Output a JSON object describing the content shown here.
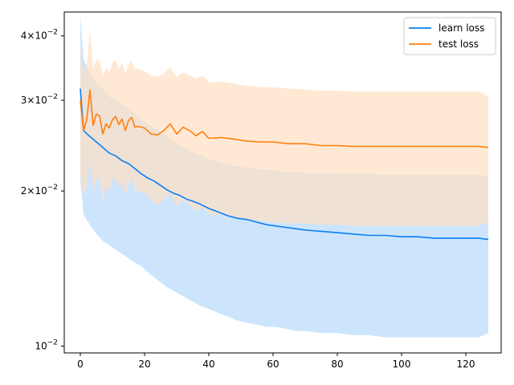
{
  "chart_data": {
    "type": "line",
    "title": "",
    "xlabel": "",
    "ylabel": "",
    "xlim": [
      -5,
      131
    ],
    "ylim": [
      0.0097,
      0.0445
    ],
    "yscale": "log",
    "grid": false,
    "legend": {
      "position": "upper right",
      "entries": [
        "learn loss",
        "test loss"
      ]
    },
    "x_ticks": [
      0,
      20,
      40,
      60,
      80,
      100,
      120
    ],
    "x_tick_labels": [
      "0",
      "20",
      "40",
      "60",
      "80",
      "100",
      "120"
    ],
    "y_ticks": [
      0.01,
      0.02,
      0.03,
      0.04
    ],
    "y_tick_labels": [
      {
        "mantissa": "",
        "base": "10",
        "exp": "−2"
      },
      {
        "mantissa": "2",
        "base": "10",
        "exp": "−2"
      },
      {
        "mantissa": "3",
        "base": "10",
        "exp": "−2"
      },
      {
        "mantissa": "4",
        "base": "10",
        "exp": "−2"
      }
    ],
    "series": [
      {
        "name": "learn loss",
        "color": "#0a7ff0",
        "band_color": "#cce5fd",
        "x": [
          0,
          1,
          3,
          5,
          7,
          9,
          11,
          13,
          15,
          17,
          19,
          21,
          23,
          25,
          27,
          29,
          31,
          33,
          35,
          37,
          40,
          43,
          46,
          49,
          52,
          55,
          58,
          61,
          64,
          67,
          70,
          75,
          80,
          85,
          90,
          95,
          100,
          105,
          110,
          115,
          120,
          124,
          127
        ],
        "y": [
          0.0316,
          0.0262,
          0.0255,
          0.0249,
          0.0243,
          0.0237,
          0.0234,
          0.0229,
          0.0226,
          0.0221,
          0.0216,
          0.0212,
          0.0209,
          0.0205,
          0.0201,
          0.0198,
          0.0196,
          0.0193,
          0.0191,
          0.0189,
          0.0185,
          0.0182,
          0.0179,
          0.0177,
          0.0176,
          0.0174,
          0.0172,
          0.0171,
          0.017,
          0.0169,
          0.0168,
          0.0167,
          0.0166,
          0.0165,
          0.0164,
          0.0164,
          0.0163,
          0.0163,
          0.0162,
          0.0162,
          0.0162,
          0.0162,
          0.0161
        ],
        "lower": [
          0.021,
          0.018,
          0.0172,
          0.0165,
          0.016,
          0.0157,
          0.0154,
          0.0151,
          0.0148,
          0.0145,
          0.0143,
          0.0139,
          0.0136,
          0.0133,
          0.013,
          0.0128,
          0.0126,
          0.0124,
          0.0122,
          0.012,
          0.0118,
          0.0116,
          0.0114,
          0.0112,
          0.0111,
          0.011,
          0.0109,
          0.0109,
          0.0108,
          0.0107,
          0.0107,
          0.0106,
          0.0106,
          0.0105,
          0.0105,
          0.0104,
          0.0104,
          0.0104,
          0.0104,
          0.0104,
          0.0104,
          0.0104,
          0.0106
        ],
        "upper": [
          0.044,
          0.036,
          0.034,
          0.0325,
          0.0315,
          0.0305,
          0.03,
          0.0295,
          0.029,
          0.0283,
          0.0275,
          0.027,
          0.0265,
          0.026,
          0.0255,
          0.025,
          0.0246,
          0.0242,
          0.0238,
          0.0235,
          0.0231,
          0.0228,
          0.0225,
          0.0223,
          0.0222,
          0.0221,
          0.022,
          0.0219,
          0.0218,
          0.0218,
          0.0217,
          0.0217,
          0.0216,
          0.0216,
          0.0216,
          0.0215,
          0.0215,
          0.0215,
          0.0215,
          0.0215,
          0.0215,
          0.0215,
          0.0213
        ]
      },
      {
        "name": "test loss",
        "color": "#ff7f0e",
        "band_color": "#ffdfc3",
        "x": [
          0,
          1,
          2,
          3,
          4,
          5,
          6,
          7,
          8,
          9,
          10,
          11,
          12,
          13,
          14,
          15,
          16,
          17,
          18,
          20,
          22,
          24,
          26,
          28,
          30,
          32,
          34,
          36,
          38,
          40,
          44,
          48,
          52,
          56,
          60,
          65,
          70,
          75,
          80,
          85,
          90,
          95,
          100,
          105,
          110,
          115,
          120,
          124,
          127
        ],
        "y": [
          0.03,
          0.0262,
          0.0275,
          0.0314,
          0.0268,
          0.0282,
          0.028,
          0.0258,
          0.027,
          0.0265,
          0.0275,
          0.0279,
          0.0269,
          0.0276,
          0.0262,
          0.0274,
          0.0278,
          0.0266,
          0.0267,
          0.0265,
          0.0258,
          0.0257,
          0.0262,
          0.027,
          0.0258,
          0.0266,
          0.0262,
          0.0256,
          0.0261,
          0.0253,
          0.0254,
          0.0252,
          0.025,
          0.0249,
          0.0249,
          0.0247,
          0.0247,
          0.0245,
          0.0245,
          0.0244,
          0.0244,
          0.0244,
          0.0244,
          0.0244,
          0.0244,
          0.0244,
          0.0244,
          0.0244,
          0.0243
        ],
        "lower": [
          0.0215,
          0.0195,
          0.0205,
          0.0232,
          0.0198,
          0.0212,
          0.021,
          0.019,
          0.0205,
          0.0198,
          0.021,
          0.0212,
          0.0202,
          0.0208,
          0.0195,
          0.0205,
          0.0212,
          0.02,
          0.02,
          0.0198,
          0.0192,
          0.0188,
          0.0192,
          0.0198,
          0.0187,
          0.0192,
          0.0188,
          0.0183,
          0.0186,
          0.018,
          0.018,
          0.0178,
          0.0176,
          0.0175,
          0.0174,
          0.0173,
          0.0173,
          0.0172,
          0.0172,
          0.0171,
          0.0171,
          0.0171,
          0.0171,
          0.0171,
          0.0171,
          0.0171,
          0.0171,
          0.0171,
          0.0174
        ],
        "upper": [
          0.038,
          0.034,
          0.035,
          0.041,
          0.0345,
          0.036,
          0.0358,
          0.0335,
          0.0348,
          0.034,
          0.0355,
          0.036,
          0.0345,
          0.0355,
          0.0338,
          0.0352,
          0.0358,
          0.0344,
          0.0345,
          0.0342,
          0.0335,
          0.0333,
          0.0338,
          0.0348,
          0.0333,
          0.034,
          0.0336,
          0.033,
          0.0335,
          0.0325,
          0.0326,
          0.0323,
          0.032,
          0.0318,
          0.0318,
          0.0316,
          0.0315,
          0.0313,
          0.0313,
          0.0312,
          0.0312,
          0.0312,
          0.0312,
          0.0312,
          0.0312,
          0.0312,
          0.0312,
          0.0312,
          0.0305
        ]
      }
    ]
  }
}
